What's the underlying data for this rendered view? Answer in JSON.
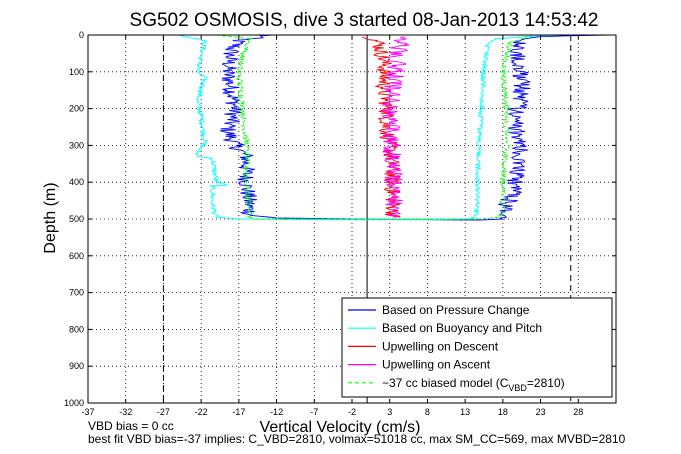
{
  "chart_data": {
    "type": "line",
    "title": "SG502 OSMOSIS, dive 3 started 08-Jan-2013 14:53:42",
    "xlabel": "Vertical Velocity (cm/s)",
    "ylabel": "Depth (m)",
    "xlim": [
      -37,
      33
    ],
    "ylim": [
      1000,
      0
    ],
    "y_reversed": true,
    "x_ticks": [
      -37,
      -32,
      -27,
      -22,
      -17,
      -12,
      -7,
      -2,
      3,
      8,
      13,
      18,
      23,
      28
    ],
    "x_tick_labels": [
      "-37",
      "-32",
      "-27",
      "-22",
      "-17",
      "-12",
      "-7",
      "-2",
      "3",
      "8",
      "13",
      "18",
      "23",
      "28"
    ],
    "y_ticks": [
      0,
      100,
      200,
      300,
      400,
      500,
      600,
      700,
      800,
      900,
      1000
    ],
    "y_tick_labels": [
      "0",
      "100",
      "200",
      "300",
      "400",
      "500",
      "600",
      "700",
      "800",
      "900",
      "1000"
    ],
    "grid": true,
    "legend_position": "bottom-right",
    "reference_lines": [
      {
        "x": 0,
        "style": "solid",
        "color": "#000000"
      },
      {
        "x": -27,
        "style": "dashed",
        "color": "#000000"
      },
      {
        "x": 27,
        "style": "dashed",
        "color": "#000000"
      }
    ],
    "series": [
      {
        "name": "Based on Pressure Change",
        "color": "#0000ff",
        "noise": 1.2,
        "x": [
          -13,
          -17,
          -18,
          -18.5,
          -18,
          -17.5,
          -18.5,
          -17.5,
          -16,
          -16,
          -15.5,
          -12,
          -2,
          8,
          15,
          18,
          18,
          19.5,
          20,
          20.5,
          19.5,
          20,
          20.5,
          20.5,
          20,
          20,
          21,
          23,
          32
        ],
        "y": [
          0,
          15,
          40,
          100,
          150,
          200,
          260,
          300,
          330,
          400,
          490,
          497,
          500,
          502,
          503,
          500,
          480,
          420,
          350,
          300,
          250,
          200,
          150,
          100,
          60,
          30,
          10,
          4,
          0
        ]
      },
      {
        "name": "Based on Buoyancy and Pitch",
        "color": "#00ffff",
        "noise": 0.35,
        "x": [
          -25,
          -21.5,
          -22,
          -22.5,
          -21.5,
          -22.5,
          -22,
          -21.5,
          -22.5,
          -22.5,
          -20.5,
          -20,
          -18.5,
          -20.5,
          -20.5,
          -20,
          -17,
          -5,
          8,
          14,
          14.5,
          14.8,
          15.2,
          15.5,
          16,
          17,
          25
        ],
        "y": [
          0,
          15,
          60,
          100,
          115,
          180,
          220,
          290,
          320,
          330,
          335,
          400,
          408,
          410,
          460,
          495,
          500,
          502,
          502,
          500,
          480,
          300,
          200,
          100,
          30,
          10,
          0
        ]
      },
      {
        "name": "Upwelling on Descent",
        "color": "#ff0000",
        "noise": 1.1,
        "x": [
          0.5,
          1.5,
          2.3,
          2.2,
          2.7,
          2.5,
          3,
          3.3,
          3.3,
          3.5
        ],
        "y": [
          5,
          20,
          80,
          150,
          200,
          250,
          300,
          350,
          400,
          495
        ]
      },
      {
        "name": "Upwelling on Ascent",
        "color": "#ff00ff",
        "noise": 1.3,
        "x": [
          3.5,
          3.6,
          3.4,
          3.2,
          3.0,
          3.3,
          3.8,
          4.0,
          4.5,
          5.0
        ],
        "y": [
          495,
          400,
          330,
          270,
          200,
          150,
          100,
          60,
          25,
          5
        ]
      },
      {
        "name": "-37 cc biased model (C_VBD=2810)",
        "legend_label": "−37 cc biased model (C",
        "legend_sub": "VBD",
        "legend_suffix": "=2810)",
        "color": "#00ff00",
        "dashed": true,
        "noise": 0.4,
        "x": [
          -20,
          -15.5,
          -16.5,
          -17,
          -16.5,
          -16,
          -16,
          -15.5,
          -15.5,
          -15,
          15,
          17.5,
          18,
          18,
          18.5,
          18.5,
          18,
          19,
          22
        ],
        "y": [
          0,
          10,
          60,
          100,
          200,
          300,
          400,
          480,
          495,
          500,
          500,
          495,
          480,
          400,
          300,
          200,
          100,
          20,
          0
        ]
      }
    ]
  },
  "footer": {
    "line1": "VBD bias = 0 cc",
    "line2": "best fit VBD bias=-37 implies: C_VBD=2810, volmax=51018 cc, max SM_CC=569, max MVBD=2810"
  }
}
